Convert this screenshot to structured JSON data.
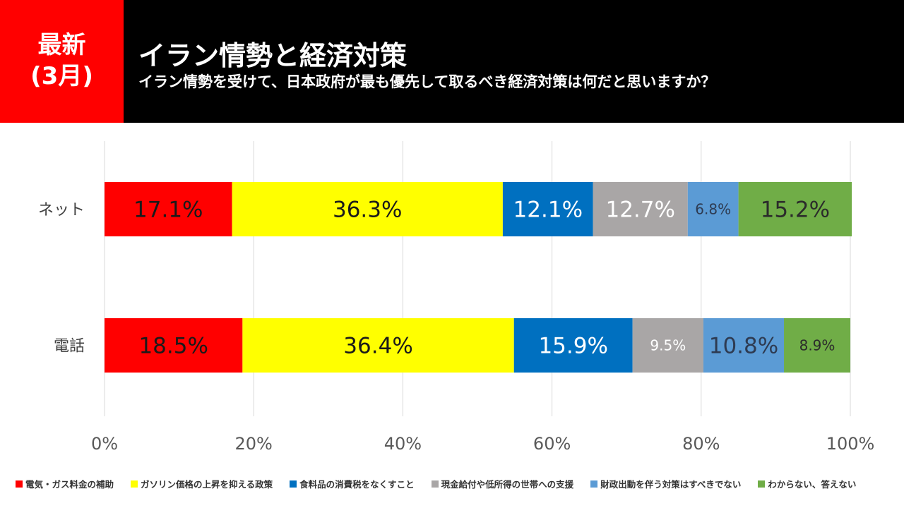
{
  "header": {
    "badge_line1": "最新",
    "badge_line2": "(3月)",
    "title": "イラン情勢と経済対策",
    "subtitle": "イラン情勢を受けて、日本政府が最も優先して取るべき経済対策は何だと思いますか？"
  },
  "chart_data": {
    "type": "bar",
    "orientation": "horizontal",
    "stacked": "100%",
    "categories": [
      "ネット",
      "電話"
    ],
    "xlim": [
      0,
      100
    ],
    "xticks": [
      "0%",
      "20%",
      "40%",
      "60%",
      "80%",
      "100%"
    ],
    "grid": true,
    "legend_position": "bottom",
    "series": [
      {
        "name": "電気・ガス料金の補助",
        "color": "#ff0000",
        "label_color": "#1a1a1a",
        "values": [
          17.1,
          18.5
        ],
        "labels": [
          "17.1%",
          "18.5%"
        ]
      },
      {
        "name": "ガソリン価格の上昇を抑える政策",
        "color": "#ffff00",
        "label_color": "#1a1a1a",
        "values": [
          36.3,
          36.4
        ],
        "labels": [
          "36.3%",
          "36.4%"
        ]
      },
      {
        "name": "食料品の消費税をなくすこと",
        "color": "#0070c0",
        "label_color": "#ffffff",
        "values": [
          12.1,
          15.9
        ],
        "labels": [
          "12.1%",
          "15.9%"
        ]
      },
      {
        "name": "現金給付や低所得の世帯への支援",
        "color": "#a9a6a6",
        "label_color": "#ffffff",
        "values": [
          12.7,
          9.5
        ],
        "labels": [
          "12.7%",
          "9.5%"
        ]
      },
      {
        "name": "財政出動を伴う対策はすべきでない",
        "color": "#5b9bd5",
        "label_color": "#2e3b52",
        "values": [
          6.8,
          10.8
        ],
        "labels": [
          "6.8%",
          "10.8%"
        ]
      },
      {
        "name": "わからない、答えない",
        "color": "#70ad47",
        "label_color": "#2b2b2b",
        "values": [
          15.2,
          8.9
        ],
        "labels": [
          "15.2%",
          "8.9%"
        ]
      }
    ]
  }
}
